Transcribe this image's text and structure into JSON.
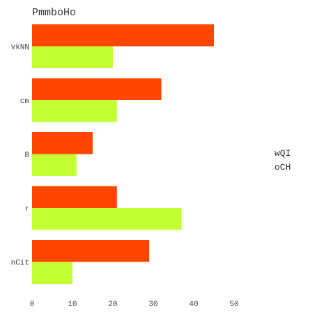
{
  "chart_data": {
    "type": "bar",
    "orientation": "horizontal",
    "title": "PmmboHo",
    "categories": [
      "vkNN",
      "cm",
      "B",
      "r",
      "nCit"
    ],
    "series": [
      {
        "name": "wQI",
        "color": "#ff4500",
        "values": [
          45,
          32,
          15,
          21,
          29
        ]
      },
      {
        "name": "oCH",
        "color": "#c4ff33",
        "values": [
          20,
          21,
          11,
          37,
          10
        ]
      }
    ],
    "xlabel": "",
    "ylabel": "",
    "xlim": [
      0,
      50
    ],
    "xticks": [
      "0",
      "10",
      "20",
      "30",
      "40",
      "50"
    ],
    "grid": false,
    "legend_position": "right"
  }
}
